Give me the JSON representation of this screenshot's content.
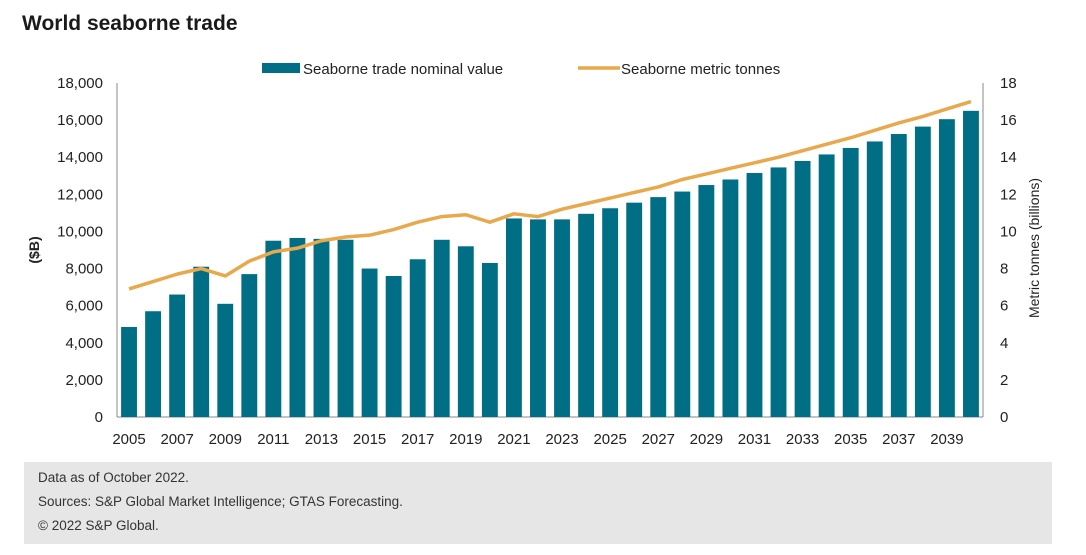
{
  "title": "World seaborne trade",
  "footer": {
    "line1": "Data as of October 2022.",
    "line2": "Sources: S&P Global Market Intelligence; GTAS Forecasting.",
    "line3": "© 2022 S&P Global."
  },
  "colors": {
    "bar": "#006f85",
    "line": "#e8a84c",
    "axis": "#888888",
    "footer_bg": "#e6e6e6"
  },
  "chart_data": {
    "type": "bar",
    "title": "World seaborne trade",
    "ylabel": "($B)",
    "y2label": "Metric tonnes (billions)",
    "xlabel": "",
    "legend_position": "top",
    "grid": false,
    "ylim": [
      0,
      18000
    ],
    "y2lim": [
      0,
      18
    ],
    "yticks": [
      "0",
      "2,000",
      "4,000",
      "6,000",
      "8,000",
      "10,000",
      "12,000",
      "14,000",
      "16,000",
      "18,000"
    ],
    "y2ticks": [
      "0",
      "2",
      "4",
      "6",
      "8",
      "10",
      "12",
      "14",
      "16",
      "18"
    ],
    "x_tick_labels": [
      "2005",
      "2007",
      "2009",
      "2011",
      "2013",
      "2015",
      "2017",
      "2019",
      "2021",
      "2023",
      "2025",
      "2027",
      "2029",
      "2031",
      "2033",
      "2035",
      "2037",
      "2039"
    ],
    "categories": [
      2005,
      2006,
      2007,
      2008,
      2009,
      2010,
      2011,
      2012,
      2013,
      2014,
      2015,
      2016,
      2017,
      2018,
      2019,
      2020,
      2021,
      2022,
      2023,
      2024,
      2025,
      2026,
      2027,
      2028,
      2029,
      2030,
      2031,
      2032,
      2033,
      2034,
      2035,
      2036,
      2037,
      2038,
      2039,
      2040
    ],
    "series": [
      {
        "name": "Seaborne trade nominal value",
        "type": "bar",
        "axis": "left",
        "values": [
          4850,
          5700,
          6600,
          8100,
          6100,
          7700,
          9500,
          9650,
          9600,
          9550,
          8000,
          7600,
          8500,
          9550,
          9200,
          8300,
          10700,
          10650,
          10650,
          10950,
          11250,
          11550,
          11850,
          12150,
          12500,
          12800,
          13150,
          13450,
          13800,
          14150,
          14500,
          14850,
          15250,
          15650,
          16050,
          16500
        ]
      },
      {
        "name": "Seaborne metric tonnes",
        "type": "line",
        "axis": "right",
        "values": [
          6.9,
          7.3,
          7.7,
          8.0,
          7.6,
          8.4,
          8.9,
          9.1,
          9.5,
          9.7,
          9.8,
          10.1,
          10.5,
          10.8,
          10.9,
          10.5,
          10.95,
          10.8,
          11.2,
          11.5,
          11.8,
          12.1,
          12.4,
          12.8,
          13.1,
          13.4,
          13.7,
          14.0,
          14.35,
          14.7,
          15.05,
          15.45,
          15.85,
          16.2,
          16.6,
          17.0
        ]
      }
    ]
  }
}
